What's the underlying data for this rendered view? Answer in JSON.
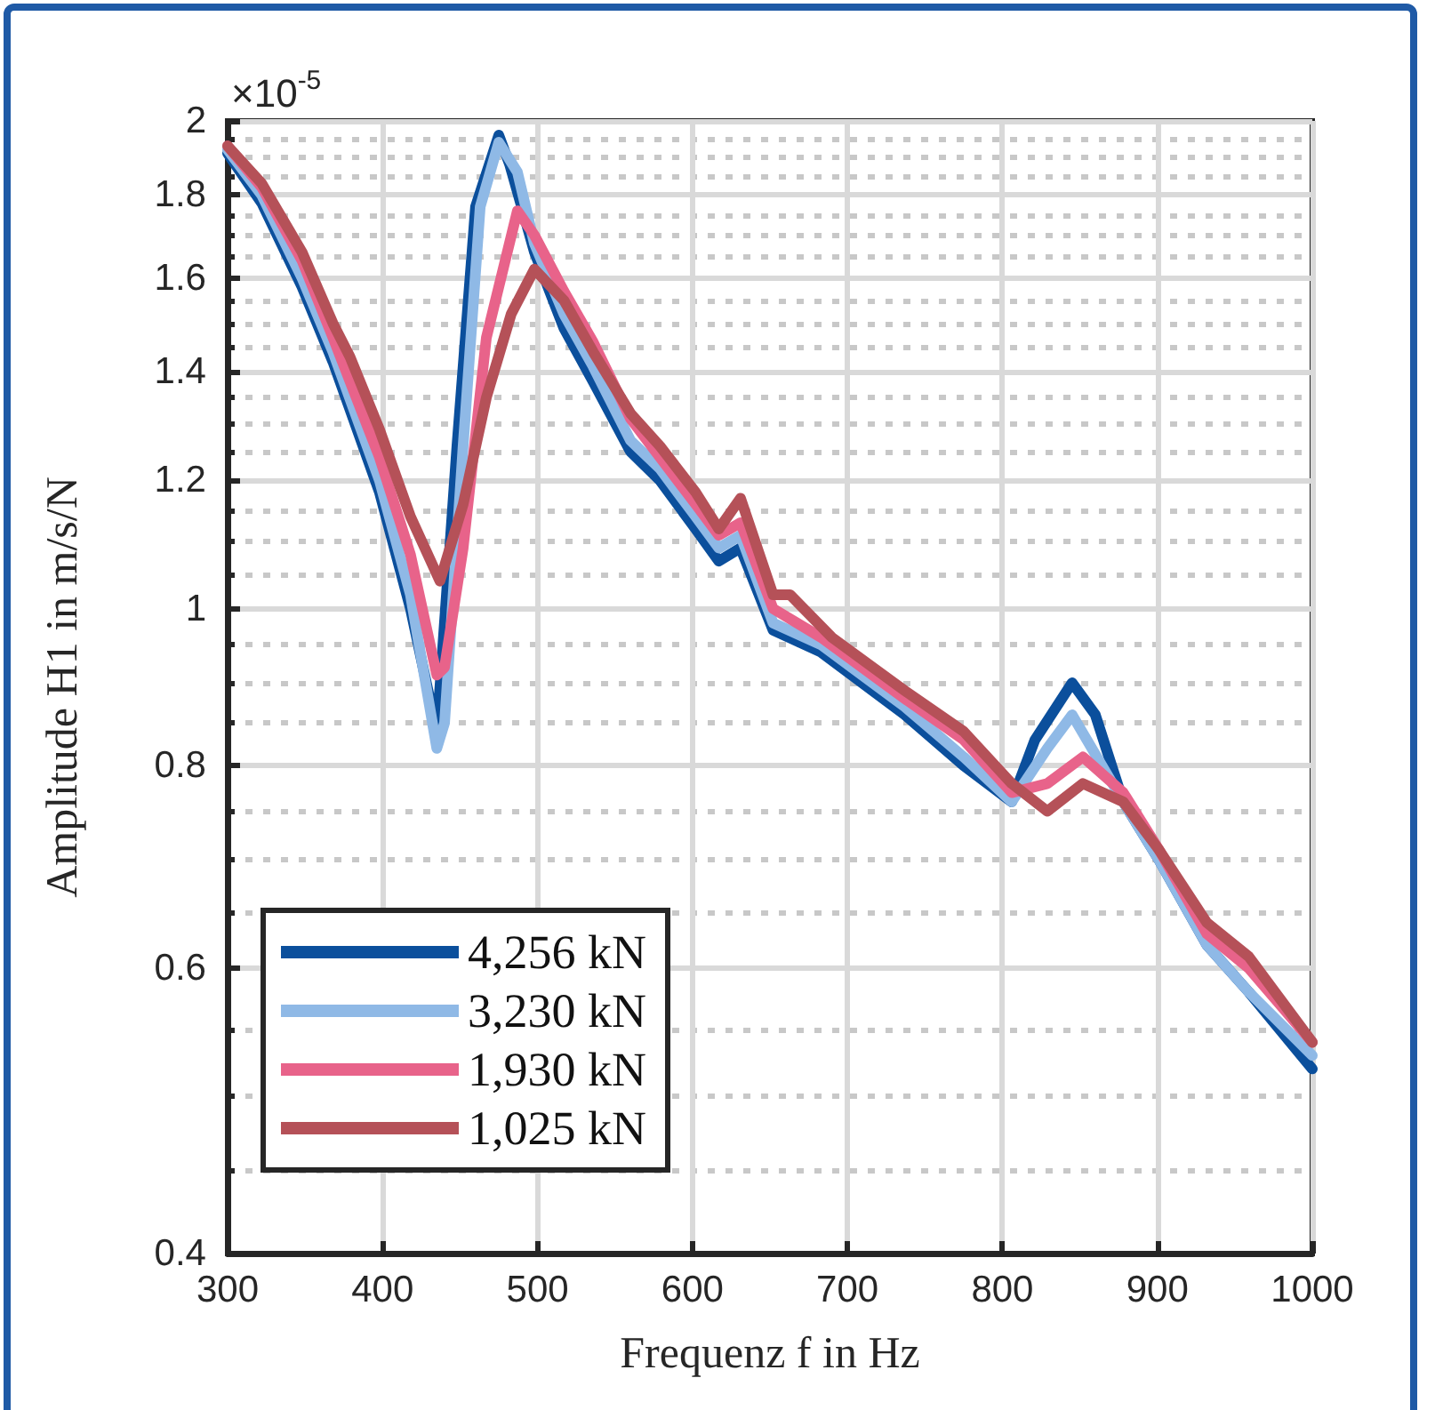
{
  "chart_data": {
    "type": "line",
    "xlabel": "Frequenz f in Hz",
    "ylabel": "Amplitude H1 in m/s/N",
    "annotations": [
      "×10$^{-5}$"
    ],
    "xlim": [
      300,
      1000
    ],
    "xticks": [
      300,
      400,
      500,
      600,
      700,
      800,
      900,
      1000
    ],
    "ylim": [
      0.4,
      2
    ],
    "yticks": [
      0.4,
      0.6,
      0.8,
      1,
      1.2,
      1.4,
      1.6,
      1.8,
      2
    ],
    "log": "y",
    "grid": true,
    "legend": "bottom left",
    "marker": "none",
    "line_style": "solid",
    "series": [
      {
        "name": "4,256 kN",
        "color": "#0b4f9c",
        "x": [
          300,
          322,
          348,
          368,
          398,
          418,
          435,
          448,
          460,
          475,
          482,
          498,
          517,
          536,
          560,
          579,
          602,
          617,
          631,
          652,
          683,
          737,
          775,
          806,
          821,
          845,
          860,
          878,
          901,
          932,
          959,
          1000
        ],
        "values": [
          1.91,
          1.78,
          1.58,
          1.42,
          1.18,
          1.0,
          0.84,
          1.26,
          1.77,
          1.96,
          1.88,
          1.66,
          1.49,
          1.38,
          1.25,
          1.2,
          1.12,
          1.07,
          1.09,
          0.97,
          0.94,
          0.86,
          0.8,
          0.76,
          0.83,
          0.9,
          0.86,
          0.76,
          0.7,
          0.62,
          0.58,
          0.52
        ]
      },
      {
        "name": "3,230 kN",
        "color": "#8fb9e6",
        "x": [
          300,
          322,
          348,
          368,
          398,
          418,
          435,
          440,
          452,
          463,
          475,
          487,
          498,
          517,
          536,
          560,
          579,
          602,
          617,
          631,
          652,
          683,
          737,
          775,
          806,
          829,
          845,
          878,
          901,
          932,
          959,
          1000
        ],
        "values": [
          1.92,
          1.8,
          1.6,
          1.44,
          1.2,
          1.02,
          0.82,
          0.85,
          1.26,
          1.77,
          1.94,
          1.86,
          1.68,
          1.52,
          1.41,
          1.27,
          1.22,
          1.14,
          1.09,
          1.11,
          0.98,
          0.95,
          0.87,
          0.81,
          0.76,
          0.82,
          0.86,
          0.76,
          0.7,
          0.62,
          0.58,
          0.53
        ]
      },
      {
        "name": "1,930 kN",
        "color": "#e8638a",
        "x": [
          300,
          322,
          348,
          368,
          398,
          418,
          435,
          440,
          452,
          467,
          487,
          498,
          517,
          536,
          560,
          579,
          602,
          617,
          631,
          652,
          683,
          737,
          775,
          806,
          829,
          852,
          878,
          901,
          932,
          959,
          1000
        ],
        "values": [
          1.93,
          1.82,
          1.64,
          1.47,
          1.24,
          1.08,
          0.91,
          0.92,
          1.09,
          1.47,
          1.76,
          1.7,
          1.57,
          1.46,
          1.31,
          1.24,
          1.16,
          1.11,
          1.13,
          1.0,
          0.96,
          0.88,
          0.83,
          0.77,
          0.78,
          0.81,
          0.77,
          0.71,
          0.63,
          0.6,
          0.54
        ]
      },
      {
        "name": "1,025 kN",
        "color": "#b55158",
        "x": [
          300,
          322,
          348,
          368,
          379,
          398,
          418,
          437,
          452,
          467,
          483,
          498,
          517,
          536,
          560,
          579,
          602,
          617,
          631,
          652,
          663,
          690,
          737,
          775,
          806,
          829,
          852,
          878,
          901,
          932,
          959,
          1000
        ],
        "values": [
          1.93,
          1.83,
          1.66,
          1.5,
          1.43,
          1.29,
          1.14,
          1.04,
          1.16,
          1.35,
          1.52,
          1.62,
          1.55,
          1.44,
          1.32,
          1.26,
          1.18,
          1.12,
          1.17,
          1.02,
          1.02,
          0.96,
          0.89,
          0.84,
          0.78,
          0.75,
          0.78,
          0.76,
          0.71,
          0.64,
          0.61,
          0.54
        ]
      }
    ]
  }
}
